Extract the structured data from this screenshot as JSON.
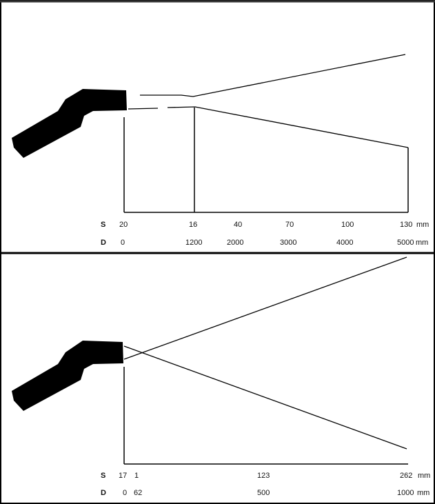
{
  "diagrams": [
    {
      "s_label": "S",
      "d_label": "D",
      "s_values": [
        "20",
        "16",
        "40",
        "70",
        "100",
        "130"
      ],
      "d_values": [
        "0",
        "1200",
        "2000",
        "3000",
        "4000",
        "5000"
      ],
      "s_unit": "mm",
      "d_unit": "mm"
    },
    {
      "s_label": "S",
      "d_label": "D",
      "s_values": [
        "17",
        "1",
        "123",
        "262"
      ],
      "d_values": [
        "0",
        "62",
        "500",
        "1000"
      ],
      "s_unit": "mm",
      "d_unit": "mm"
    }
  ]
}
